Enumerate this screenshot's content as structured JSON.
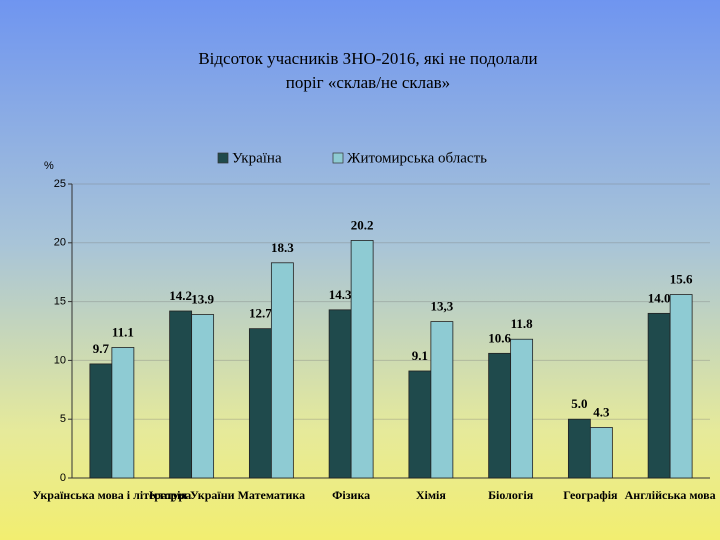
{
  "chart_data": {
    "type": "bar",
    "title": [
      "Відсоток учасників ЗНО-2016, які не подолали",
      "поріг «склав/не склав»"
    ],
    "y_label": "%",
    "categories": [
      "Українська мова і література",
      "Історія України",
      "Математика",
      "Фізика",
      "Хімія",
      "Біологія",
      "Географія",
      "Англійська мова"
    ],
    "series": [
      {
        "name": "Україна",
        "color": "#1f4a4c",
        "values": [
          9.7,
          14.2,
          12.7,
          14.3,
          9.1,
          10.6,
          5.0,
          14.0
        ],
        "value_labels": [
          "9.7",
          "14.2",
          "12.7",
          "14.3",
          "9.1",
          "10.6",
          "5.0",
          "14.0"
        ]
      },
      {
        "name": "Житомирська область",
        "color": "#8ecbd3",
        "values": [
          11.1,
          13.9,
          18.3,
          20.2,
          13.3,
          11.8,
          4.3,
          15.6
        ],
        "value_labels": [
          "11.1",
          "13.9",
          "18.3",
          "20.2",
          "13,3",
          "11.8",
          "4.3",
          "15.6"
        ]
      }
    ],
    "ylim": [
      0,
      25
    ],
    "yticks": [
      0,
      5,
      10,
      15,
      20,
      25
    ],
    "grid": true,
    "legend": "top"
  }
}
